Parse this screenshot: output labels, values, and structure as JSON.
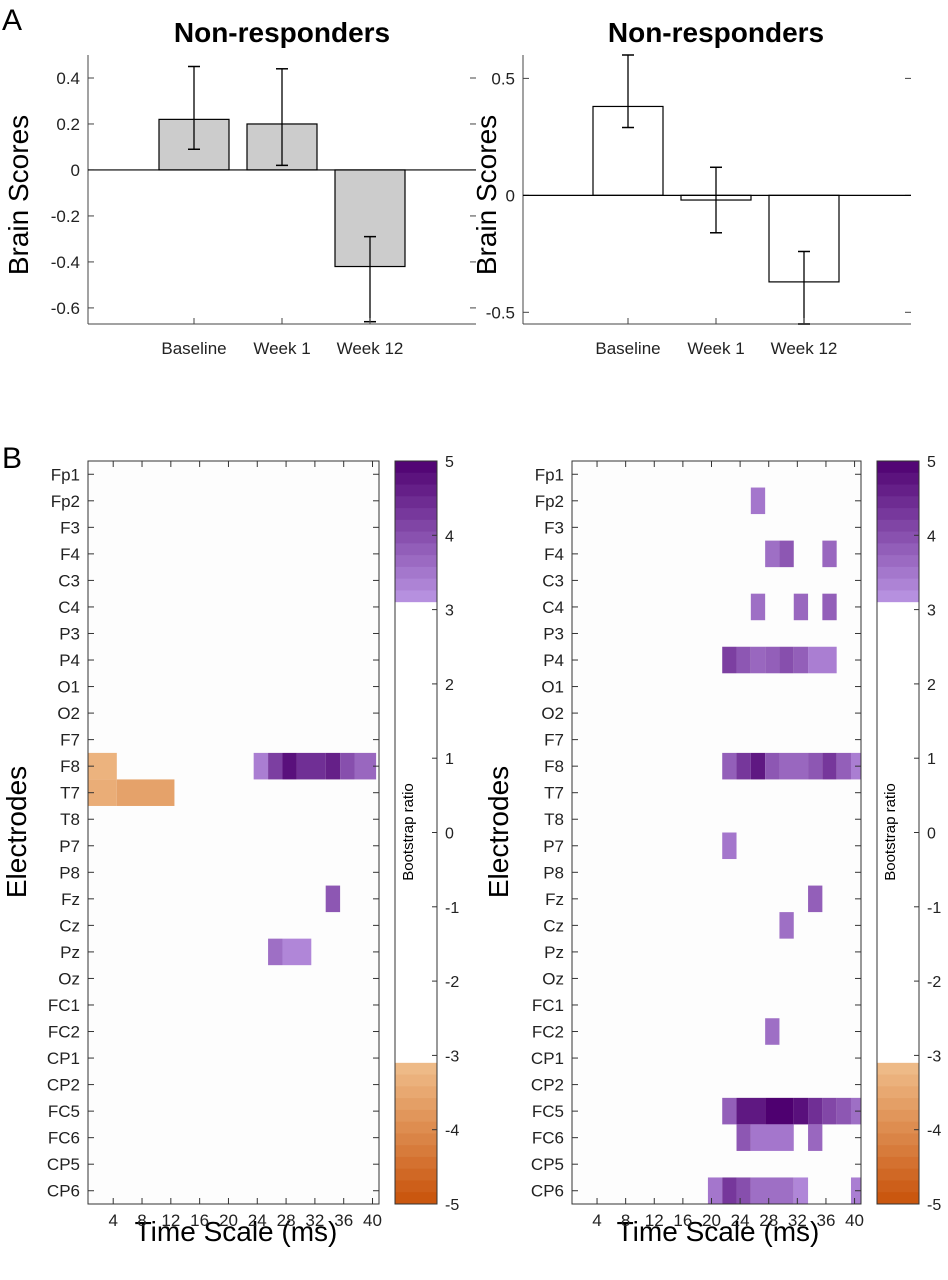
{
  "panel_labels": [
    "A",
    "B"
  ],
  "chart_data": [
    {
      "type": "bar",
      "panel": "A",
      "title": "Non-responders",
      "ylabel": "Brain Scores",
      "xlabel": "",
      "categories": [
        "Baseline",
        "Week 1",
        "Week 12"
      ],
      "values": [
        0.22,
        0.2,
        -0.42
      ],
      "err_low": [
        0.09,
        0.02,
        -0.66
      ],
      "err_high": [
        0.45,
        0.44,
        -0.29
      ],
      "ylim": [
        -0.67,
        0.5
      ],
      "yticks": [
        0.4,
        0.2,
        0,
        -0.2,
        -0.4,
        -0.6
      ],
      "ytick_labels": [
        "0.4",
        "0.2",
        "0",
        "-0.2",
        "-0.4",
        "-0.6"
      ],
      "bar_color": "#cccccc"
    },
    {
      "type": "bar",
      "panel": "A",
      "title": "Non-responders",
      "ylabel": "Brain Scores",
      "xlabel": "",
      "categories": [
        "Baseline",
        "Week 1",
        "Week 12"
      ],
      "values": [
        0.38,
        -0.02,
        -0.37
      ],
      "err_low": [
        0.29,
        -0.16,
        -0.55
      ],
      "err_high": [
        0.6,
        0.12,
        -0.24
      ],
      "ylim": [
        -0.55,
        0.6
      ],
      "yticks": [
        0.5,
        0,
        -0.5
      ],
      "ytick_labels": [
        "0.5",
        "0",
        "-0.5"
      ],
      "bar_color": "#ffffff"
    },
    {
      "type": "heatmap",
      "panel": "B",
      "ylabel": "Electrodes",
      "xlabel": "Time Scale (ms)",
      "colorbar_label": "Bootstrap ratio",
      "colorbar_ticks": [
        "5",
        "4",
        "3",
        "2",
        "1",
        "0",
        "-1",
        "-2",
        "-3",
        "-4",
        "-5"
      ],
      "clim": [
        -5,
        5
      ],
      "threshold": 3.1,
      "electrodes": [
        "Fp1",
        "Fp2",
        "F3",
        "F4",
        "C3",
        "C4",
        "P3",
        "P4",
        "O1",
        "O2",
        "F7",
        "F8",
        "T7",
        "T8",
        "P7",
        "P8",
        "Fz",
        "Cz",
        "Pz",
        "Oz",
        "FC1",
        "FC2",
        "CP1",
        "CP2",
        "FC5",
        "FC6",
        "CP5",
        "CP6"
      ],
      "xticks": [
        "4",
        "8",
        "12",
        "16",
        "20",
        "24",
        "28",
        "32",
        "36",
        "40"
      ],
      "n_scales": 40,
      "segments": [
        {
          "row": 11,
          "start": 1,
          "end": 4,
          "value": -3.3
        },
        {
          "row": 12,
          "start": 1,
          "end": 4,
          "value": -3.4
        },
        {
          "row": 12,
          "start": 5,
          "end": 12,
          "value": -3.6
        },
        {
          "row": 11,
          "start": 24,
          "end": 25,
          "value": 3.4
        },
        {
          "row": 11,
          "start": 26,
          "end": 27,
          "value": 4.2
        },
        {
          "row": 11,
          "start": 28,
          "end": 29,
          "value": 4.8
        },
        {
          "row": 11,
          "start": 30,
          "end": 33,
          "value": 4.4
        },
        {
          "row": 11,
          "start": 34,
          "end": 35,
          "value": 4.6
        },
        {
          "row": 11,
          "start": 36,
          "end": 37,
          "value": 4.0
        },
        {
          "row": 11,
          "start": 38,
          "end": 40,
          "value": 3.7
        },
        {
          "row": 16,
          "start": 34,
          "end": 35,
          "value": 3.9
        },
        {
          "row": 18,
          "start": 26,
          "end": 27,
          "value": 3.6
        },
        {
          "row": 18,
          "start": 28,
          "end": 31,
          "value": 3.3
        }
      ]
    },
    {
      "type": "heatmap",
      "panel": "B",
      "ylabel": "Electrodes",
      "xlabel": "Time Scale (ms)",
      "colorbar_label": "Bootstrap ratio",
      "colorbar_ticks": [
        "5",
        "4",
        "3",
        "2",
        "1",
        "0",
        "-1",
        "-2",
        "-3",
        "-4",
        "-5"
      ],
      "clim": [
        -5,
        5
      ],
      "threshold": 3.1,
      "electrodes": [
        "Fp1",
        "Fp2",
        "F3",
        "F4",
        "C3",
        "C4",
        "P3",
        "P4",
        "O1",
        "O2",
        "F7",
        "F8",
        "T7",
        "T8",
        "P7",
        "P8",
        "Fz",
        "Cz",
        "Pz",
        "Oz",
        "FC1",
        "FC2",
        "CP1",
        "CP2",
        "FC5",
        "FC6",
        "CP5",
        "CP6"
      ],
      "xticks": [
        "4",
        "8",
        "12",
        "16",
        "20",
        "24",
        "28",
        "32",
        "36",
        "40"
      ],
      "n_scales": 40,
      "segments": [
        {
          "row": 1,
          "start": 26,
          "end": 27,
          "value": 3.5
        },
        {
          "row": 3,
          "start": 28,
          "end": 29,
          "value": 3.6
        },
        {
          "row": 3,
          "start": 30,
          "end": 31,
          "value": 3.9
        },
        {
          "row": 3,
          "start": 36,
          "end": 37,
          "value": 3.7
        },
        {
          "row": 5,
          "start": 26,
          "end": 27,
          "value": 3.6
        },
        {
          "row": 5,
          "start": 32,
          "end": 33,
          "value": 3.7
        },
        {
          "row": 5,
          "start": 36,
          "end": 37,
          "value": 3.8
        },
        {
          "row": 7,
          "start": 22,
          "end": 23,
          "value": 4.2
        },
        {
          "row": 7,
          "start": 24,
          "end": 25,
          "value": 3.9
        },
        {
          "row": 7,
          "start": 26,
          "end": 27,
          "value": 3.7
        },
        {
          "row": 7,
          "start": 28,
          "end": 29,
          "value": 3.8
        },
        {
          "row": 7,
          "start": 30,
          "end": 31,
          "value": 4.0
        },
        {
          "row": 7,
          "start": 32,
          "end": 33,
          "value": 3.8
        },
        {
          "row": 7,
          "start": 34,
          "end": 37,
          "value": 3.4
        },
        {
          "row": 11,
          "start": 22,
          "end": 23,
          "value": 3.8
        },
        {
          "row": 11,
          "start": 24,
          "end": 25,
          "value": 4.3
        },
        {
          "row": 11,
          "start": 26,
          "end": 27,
          "value": 4.7
        },
        {
          "row": 11,
          "start": 28,
          "end": 29,
          "value": 3.9
        },
        {
          "row": 11,
          "start": 30,
          "end": 33,
          "value": 3.7
        },
        {
          "row": 11,
          "start": 34,
          "end": 35,
          "value": 3.9
        },
        {
          "row": 11,
          "start": 36,
          "end": 37,
          "value": 4.3
        },
        {
          "row": 11,
          "start": 38,
          "end": 39,
          "value": 3.8
        },
        {
          "row": 11,
          "start": 40,
          "end": 42,
          "value": 3.4
        },
        {
          "row": 14,
          "start": 22,
          "end": 23,
          "value": 3.5
        },
        {
          "row": 16,
          "start": 34,
          "end": 35,
          "value": 3.8
        },
        {
          "row": 17,
          "start": 30,
          "end": 31,
          "value": 3.6
        },
        {
          "row": 21,
          "start": 28,
          "end": 29,
          "value": 3.6
        },
        {
          "row": 24,
          "start": 22,
          "end": 23,
          "value": 3.8
        },
        {
          "row": 24,
          "start": 24,
          "end": 27,
          "value": 4.7
        },
        {
          "row": 24,
          "start": 28,
          "end": 31,
          "value": 5.0
        },
        {
          "row": 24,
          "start": 32,
          "end": 33,
          "value": 4.8
        },
        {
          "row": 24,
          "start": 34,
          "end": 35,
          "value": 4.4
        },
        {
          "row": 24,
          "start": 36,
          "end": 37,
          "value": 4.1
        },
        {
          "row": 24,
          "start": 38,
          "end": 39,
          "value": 3.9
        },
        {
          "row": 24,
          "start": 40,
          "end": 42,
          "value": 3.6
        },
        {
          "row": 25,
          "start": 24,
          "end": 25,
          "value": 3.9
        },
        {
          "row": 25,
          "start": 26,
          "end": 31,
          "value": 3.5
        },
        {
          "row": 25,
          "start": 34,
          "end": 35,
          "value": 3.7
        },
        {
          "row": 27,
          "start": 20,
          "end": 21,
          "value": 3.5
        },
        {
          "row": 27,
          "start": 22,
          "end": 23,
          "value": 4.3
        },
        {
          "row": 27,
          "start": 24,
          "end": 25,
          "value": 4.0
        },
        {
          "row": 27,
          "start": 26,
          "end": 31,
          "value": 3.6
        },
        {
          "row": 27,
          "start": 32,
          "end": 33,
          "value": 3.3
        },
        {
          "row": 27,
          "start": 40,
          "end": 42,
          "value": 3.4
        }
      ]
    }
  ]
}
